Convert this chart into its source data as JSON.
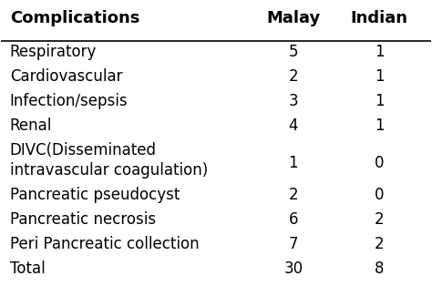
{
  "headers": [
    "Complications",
    "Malay",
    "Indian"
  ],
  "rows": [
    [
      "Respiratory",
      "5",
      "1"
    ],
    [
      "Cardiovascular",
      "2",
      "1"
    ],
    [
      "Infection/sepsis",
      "3",
      "1"
    ],
    [
      "Renal",
      "4",
      "1"
    ],
    [
      "DIVC(Disseminated\nintravascular coagulation)",
      "1",
      "0"
    ],
    [
      "Pancreatic pseudocyst",
      "2",
      "0"
    ],
    [
      "Pancreatic necrosis",
      "6",
      "2"
    ],
    [
      "Peri Pancreatic collection",
      "7",
      "2"
    ],
    [
      "Total",
      "30",
      "8"
    ]
  ],
  "bg_color": "#ffffff",
  "header_color": "#000000",
  "text_color": "#000000",
  "header_fontsize": 13,
  "body_fontsize": 12,
  "figsize": [
    4.74,
    3.14
  ],
  "dpi": 100
}
